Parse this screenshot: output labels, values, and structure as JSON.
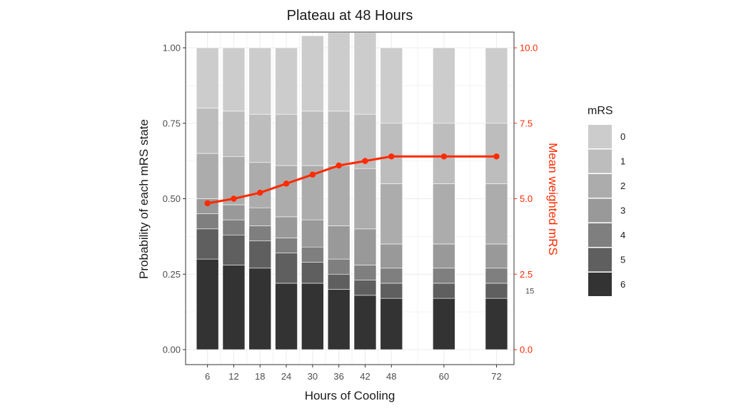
{
  "chart_data": {
    "type": "bar",
    "title": "Plateau at 48 Hours",
    "xlabel": "Hours of Cooling",
    "ylabel": "Probability of each mRS state",
    "y2label": "Mean weighted mRS",
    "x": [
      6,
      12,
      18,
      24,
      30,
      36,
      42,
      48,
      60,
      72
    ],
    "x_ticks": [
      "6",
      "12",
      "18",
      "24",
      "30",
      "36",
      "42",
      "48",
      "60",
      "72"
    ],
    "xlim": [
      1,
      76
    ],
    "ylim": [
      0,
      1
    ],
    "y_ticks": [
      "0.00",
      "0.25",
      "0.50",
      "0.75",
      "1.00"
    ],
    "y2lim": [
      0,
      10
    ],
    "y2_ticks": [
      "0.0",
      "2.5",
      "5.0",
      "7.5",
      "10.0"
    ],
    "stacked": true,
    "grid": true,
    "legend": {
      "title": "mRS",
      "position": "right"
    },
    "series": [
      {
        "name": "6",
        "color": "#333333",
        "values": [
          0.3,
          0.28,
          0.27,
          0.22,
          0.22,
          0.2,
          0.18,
          0.17,
          0.17,
          0.17
        ]
      },
      {
        "name": "5",
        "color": "#5f5f5f",
        "values": [
          0.1,
          0.1,
          0.09,
          0.1,
          0.07,
          0.05,
          0.05,
          0.05,
          0.05,
          0.05
        ]
      },
      {
        "name": "4",
        "color": "#7f7f7f",
        "values": [
          0.05,
          0.05,
          0.05,
          0.05,
          0.05,
          0.05,
          0.05,
          0.05,
          0.05,
          0.05
        ]
      },
      {
        "name": "3",
        "color": "#999999",
        "values": [
          0.05,
          0.05,
          0.06,
          0.07,
          0.09,
          0.11,
          0.12,
          0.08,
          0.08,
          0.08
        ]
      },
      {
        "name": "2",
        "color": "#acacac",
        "values": [
          0.15,
          0.16,
          0.15,
          0.17,
          0.18,
          0.2,
          0.2,
          0.2,
          0.2,
          0.2
        ]
      },
      {
        "name": "1",
        "color": "#bdbdbd",
        "values": [
          0.15,
          0.15,
          0.16,
          0.17,
          0.18,
          0.18,
          0.18,
          0.2,
          0.2,
          0.2
        ]
      },
      {
        "name": "0",
        "color": "#cccccc",
        "values": [
          0.2,
          0.21,
          0.22,
          0.22,
          0.25,
          0.26,
          0.27,
          0.25,
          0.25,
          0.25
        ]
      }
    ],
    "line": {
      "axis": "right",
      "color": "#ff2a00",
      "values": [
        4.85,
        5.0,
        5.2,
        5.5,
        5.8,
        6.1,
        6.25,
        6.4,
        6.4,
        6.4
      ]
    },
    "annotations": [
      {
        "text": "15",
        "x": 72,
        "y2": 1.95
      }
    ]
  }
}
